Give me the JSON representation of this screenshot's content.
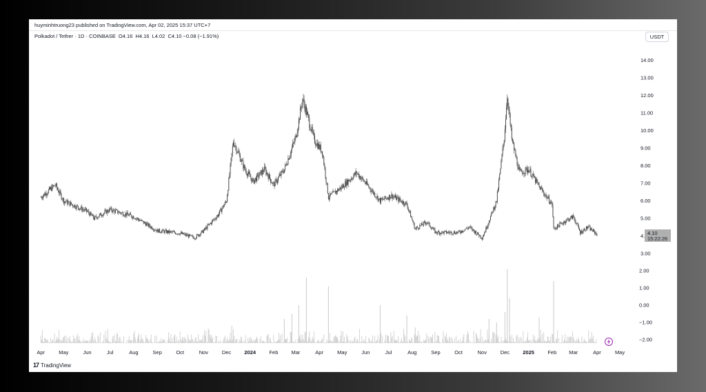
{
  "header": {
    "publish_line": "huyminhtruong23 published on TradingView.com, Apr 02, 2025 15:37 UTC+7",
    "symbol_line": "Polkadot / Tether · 1D · COINBASE",
    "open": "O4.16",
    "high": "H4.16",
    "low": "L4.02",
    "close": "C4.10",
    "change": "−0.08 (−1.91%)",
    "currency_button": "USDT"
  },
  "price_label": {
    "value": "4.10",
    "countdown": "15:22:26"
  },
  "footer": {
    "brand": "TradingView",
    "logo_icon": "tradingview-logo-icon"
  },
  "colors": {
    "candle": "#4a4a4a",
    "volume": "#c9c9c9",
    "price_tag": "#b0b0b0",
    "lightning_icon": "#9c27b0"
  },
  "chart_data": {
    "type": "candlestick",
    "price_axis": {
      "ticks": [
        "3.00",
        "4.00",
        "5.00",
        "6.00",
        "7.00",
        "8.00",
        "9.00",
        "10.00",
        "11.00",
        "12.00",
        "13.00",
        "14.00"
      ],
      "ylim": [
        3,
        15
      ]
    },
    "lower_axis": {
      "ticks": [
        "−2.00",
        "−1.00",
        "0.00",
        "1.00",
        "2.00"
      ],
      "ylim": [
        -2.2,
        2.2
      ]
    },
    "x_ticks": [
      "Apr",
      "May",
      "Jun",
      "Jul",
      "Aug",
      "Sep",
      "Oct",
      "Nov",
      "Dec",
      "2024",
      "Feb",
      "Mar",
      "Apr",
      "May",
      "Jun",
      "Jul",
      "Aug",
      "Sep",
      "Oct",
      "Nov",
      "Dec",
      "2025",
      "Feb",
      "Mar",
      "Apr",
      "May"
    ],
    "x_ticks_bold": [
      "2024",
      "2025"
    ],
    "close_series": {
      "x": [
        "2023-04-01",
        "2023-04-20",
        "2023-05-01",
        "2023-06-01",
        "2023-06-10",
        "2023-07-01",
        "2023-08-01",
        "2023-09-01",
        "2023-10-01",
        "2023-10-20",
        "2023-11-01",
        "2023-11-20",
        "2023-12-01",
        "2023-12-10",
        "2023-12-25",
        "2024-01-05",
        "2024-01-20",
        "2024-02-01",
        "2024-02-15",
        "2024-03-01",
        "2024-03-10",
        "2024-03-14",
        "2024-03-25",
        "2024-04-05",
        "2024-04-13",
        "2024-05-01",
        "2024-05-20",
        "2024-06-01",
        "2024-06-20",
        "2024-07-05",
        "2024-07-25",
        "2024-08-05",
        "2024-08-20",
        "2024-09-01",
        "2024-10-01",
        "2024-10-15",
        "2024-11-01",
        "2024-11-05",
        "2024-11-20",
        "2024-11-30",
        "2024-12-04",
        "2024-12-10",
        "2024-12-20",
        "2025-01-01",
        "2025-01-15",
        "2025-02-01",
        "2025-02-03",
        "2025-02-20",
        "2025-03-01",
        "2025-03-10",
        "2025-03-20",
        "2025-04-01"
      ],
      "close": [
        6.2,
        6.9,
        6.0,
        5.4,
        5.0,
        5.5,
        5.1,
        4.3,
        4.15,
        3.9,
        4.3,
        5.2,
        6.0,
        9.4,
        7.8,
        7.1,
        7.8,
        6.9,
        7.8,
        9.6,
        11.8,
        11.2,
        9.5,
        8.8,
        6.2,
        6.8,
        7.6,
        7.0,
        6.0,
        6.3,
        5.8,
        4.4,
        4.8,
        4.2,
        4.2,
        4.5,
        3.9,
        4.3,
        6.0,
        9.6,
        12.0,
        9.5,
        7.6,
        7.8,
        6.8,
        5.8,
        4.4,
        4.9,
        5.1,
        4.2,
        4.5,
        4.1
      ]
    },
    "indicator_spike_dates": [
      "2023-07-05",
      "2023-12-08",
      "2024-02-15",
      "2024-02-25",
      "2024-03-05",
      "2024-03-15",
      "2024-04-13",
      "2024-06-20",
      "2024-07-25",
      "2024-08-05",
      "2024-11-10",
      "2024-11-20",
      "2024-12-01",
      "2024-12-04",
      "2024-12-07",
      "2025-01-15",
      "2025-02-03"
    ],
    "indicator_spike_values": [
      -1.8,
      -1.2,
      -0.8,
      -0.5,
      0.0,
      1.6,
      1.1,
      0.0,
      -0.6,
      -1.3,
      -0.8,
      -1.0,
      -0.4,
      2.1,
      0.4,
      -0.7,
      1.4
    ]
  }
}
